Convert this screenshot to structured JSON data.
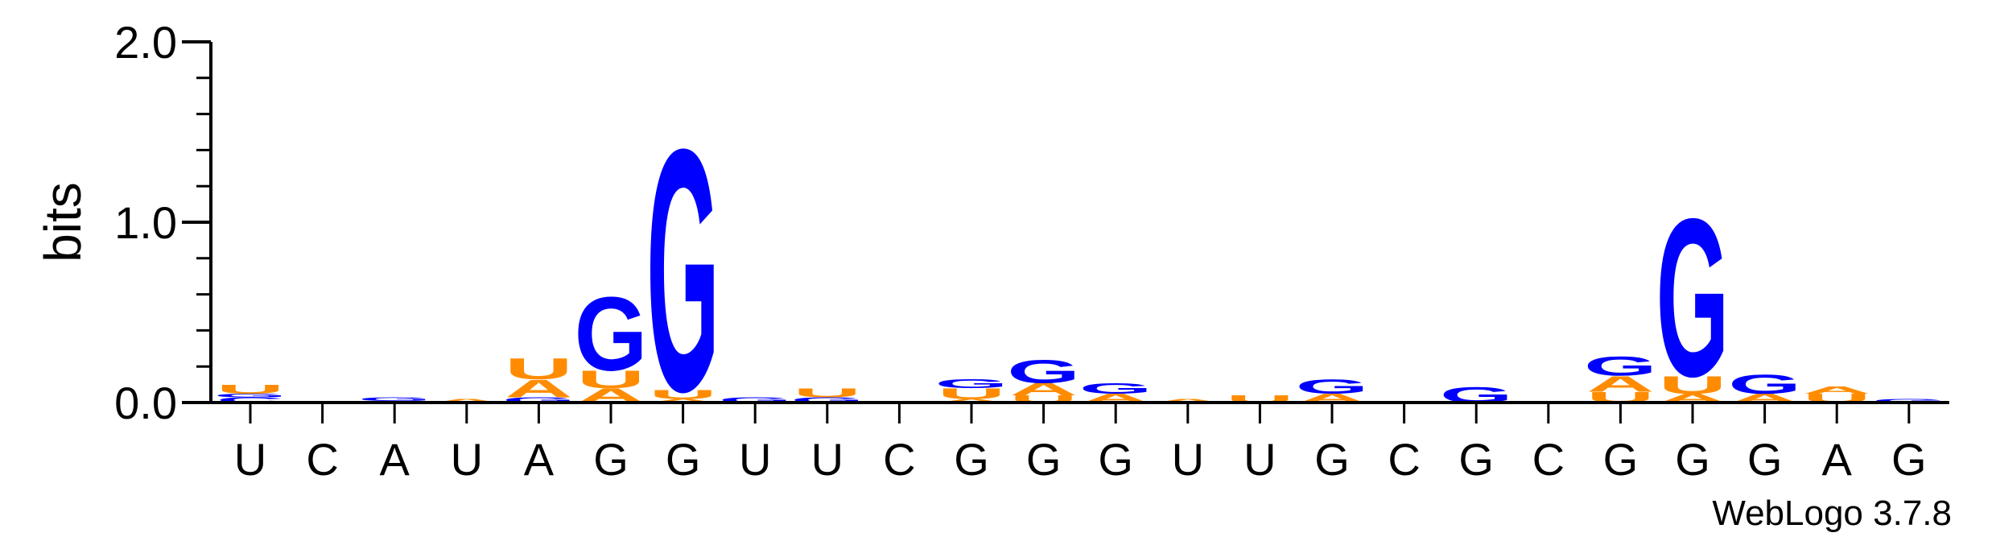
{
  "chart_data": {
    "type": "sequence-logo",
    "ylabel": "bits",
    "ylim": [
      0,
      2.0
    ],
    "yticks": [
      "0.0",
      "1.0",
      "2.0"
    ],
    "x": [
      "U",
      "C",
      "A",
      "U",
      "A",
      "G",
      "G",
      "U",
      "U",
      "C",
      "G",
      "G",
      "G",
      "U",
      "U",
      "G",
      "C",
      "G",
      "C",
      "G",
      "G",
      "G",
      "A",
      "G"
    ],
    "colors": {
      "G": "#0000ff",
      "A": "#ff8c00",
      "U": "#ff8c00",
      "C": "#0000ff"
    },
    "stacks": [
      [
        {
          "letter": "C",
          "bits": 0.03
        },
        {
          "letter": "G",
          "bits": 0.02
        },
        {
          "letter": "U",
          "bits": 0.05
        }
      ],
      [],
      [
        {
          "letter": "A",
          "bits": 0.01
        },
        {
          "letter": "G",
          "bits": 0.02
        }
      ],
      [
        {
          "letter": "A",
          "bits": 0.02
        }
      ],
      [
        {
          "letter": "G",
          "bits": 0.03
        },
        {
          "letter": "A",
          "bits": 0.1
        },
        {
          "letter": "U",
          "bits": 0.12
        }
      ],
      [
        {
          "letter": "A",
          "bits": 0.08
        },
        {
          "letter": "U",
          "bits": 0.1
        },
        {
          "letter": "G",
          "bits": 0.42
        }
      ],
      [
        {
          "letter": "A",
          "bits": 0.02
        },
        {
          "letter": "U",
          "bits": 0.05
        },
        {
          "letter": "G",
          "bits": 1.38
        }
      ],
      [
        {
          "letter": "G",
          "bits": 0.03
        }
      ],
      [
        {
          "letter": "G",
          "bits": 0.03
        },
        {
          "letter": "U",
          "bits": 0.05
        }
      ],
      [],
      [
        {
          "letter": "A",
          "bits": 0.02
        },
        {
          "letter": "U",
          "bits": 0.06
        },
        {
          "letter": "G",
          "bits": 0.05
        }
      ],
      [
        {
          "letter": "U",
          "bits": 0.04
        },
        {
          "letter": "A",
          "bits": 0.07
        },
        {
          "letter": "G",
          "bits": 0.13
        }
      ],
      [
        {
          "letter": "A",
          "bits": 0.05
        },
        {
          "letter": "G",
          "bits": 0.06
        }
      ],
      [
        {
          "letter": "A",
          "bits": 0.02
        }
      ],
      [
        {
          "letter": "U",
          "bits": 0.04
        }
      ],
      [
        {
          "letter": "A",
          "bits": 0.05
        },
        {
          "letter": "G",
          "bits": 0.08
        }
      ],
      [],
      [
        {
          "letter": "G",
          "bits": 0.09
        }
      ],
      [],
      [
        {
          "letter": "U",
          "bits": 0.06
        },
        {
          "letter": "A",
          "bits": 0.09
        },
        {
          "letter": "G",
          "bits": 0.11
        }
      ],
      [
        {
          "letter": "A",
          "bits": 0.05
        },
        {
          "letter": "U",
          "bits": 0.1
        },
        {
          "letter": "G",
          "bits": 0.9
        }
      ],
      [
        {
          "letter": "A",
          "bits": 0.05
        },
        {
          "letter": "G",
          "bits": 0.11
        }
      ],
      [
        {
          "letter": "U",
          "bits": 0.05
        },
        {
          "letter": "A",
          "bits": 0.04
        }
      ],
      [
        {
          "letter": "G",
          "bits": 0.02
        }
      ]
    ]
  },
  "credit": "WebLogo 3.7.8"
}
